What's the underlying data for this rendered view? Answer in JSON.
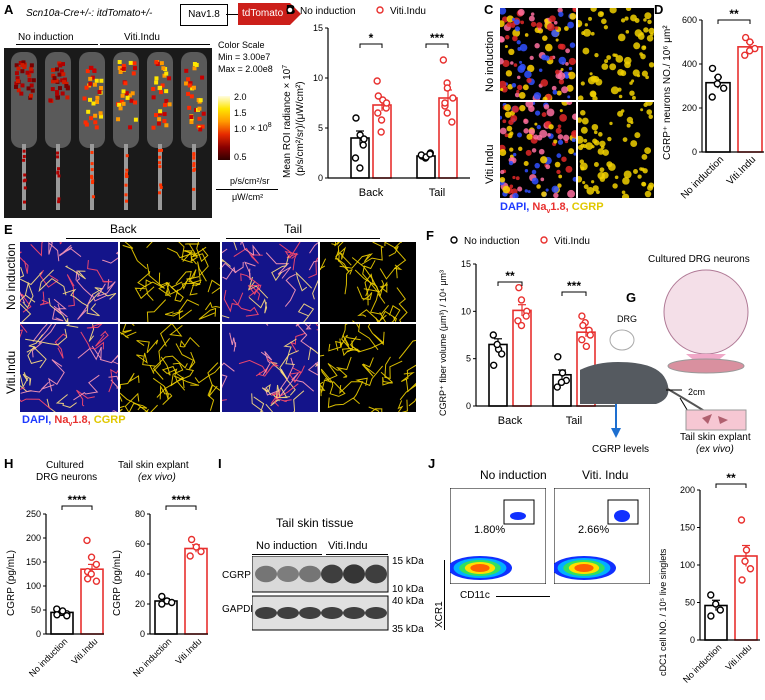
{
  "panels": {
    "A": {
      "letter": "A",
      "genotype": "Scn10a-Cre+/-: itdTomato+/-",
      "gene_box": "Nav1.8",
      "reporter_box": "tdTomato",
      "groups": [
        "No induction",
        "Viti.Indu"
      ],
      "color_scale_title": "Color Scale",
      "color_scale_min": "Min = 3.00e7",
      "color_scale_max": "Max = 2.00e8",
      "colorbar_ticks": [
        "2.0",
        "1.5",
        "1.0",
        "0.5"
      ],
      "colorbar_exp": "× 10",
      "colorbar_exp_sup": "8",
      "unit_top": "p/s/cm²/sr",
      "unit_bottom": "μW/cm²"
    },
    "B": {
      "letter": "B",
      "sig": [
        "*",
        "***"
      ]
    },
    "C": {
      "letter": "C",
      "rows": [
        "No induction",
        "Viti.Indu"
      ],
      "stain_dapi": "DAPI,",
      "stain_nav": "Na",
      "stain_nav_sub": "v",
      "stain_nav_end": "1.8,",
      "stain_cgrp": "CGRP"
    },
    "D": {
      "letter": "D",
      "sig": "**"
    },
    "E": {
      "letter": "E",
      "col_back": "Back",
      "col_tail": "Tail",
      "rows": [
        "No induction",
        "Viti.Indu"
      ],
      "stain_dapi": "DAPI,",
      "stain_nav": "Na",
      "stain_nav_sub": "v",
      "stain_nav_end": "1.8,",
      "stain_cgrp": "CGRP"
    },
    "F": {
      "letter": "F",
      "sig": [
        "**",
        "***"
      ]
    },
    "G": {
      "letter": "G",
      "title": "Cultured DRG neurons",
      "drg": "DRG",
      "distance": "2cm",
      "cgrp_levels": "CGRP levels",
      "explant": "Tail skin explant",
      "explant_sub": "(ex vivo)"
    },
    "H": {
      "letter": "H",
      "left_title_1": "Cultured",
      "left_title_2": "DRG neurons",
      "right_title_1": "Tail skin explant",
      "right_title_2": "(ex vivo)",
      "sig": "****"
    },
    "I": {
      "letter": "I",
      "title": "Tail skin tissue",
      "groups": [
        "No induction",
        "Viti.Indu"
      ],
      "rows": [
        "CGRP",
        "GAPDH"
      ],
      "markers": [
        "15 kDa",
        "10 kDa",
        "40 kDa",
        "35 kDa"
      ]
    },
    "J": {
      "letter": "J",
      "flow_titles": [
        "No induction",
        "Viti. Indu"
      ],
      "gate_pct": [
        "1.80%",
        "2.66%"
      ],
      "y_axis": "XCR1",
      "x_axis": "CD11c",
      "sig": "**"
    }
  },
  "chart_data": [
    {
      "id": "B",
      "type": "bar",
      "categories": [
        "Back",
        "Tail"
      ],
      "series": [
        {
          "name": "No induction",
          "values": [
            4.0,
            2.2
          ],
          "points": [
            [
              6.0,
              4.3,
              3.3,
              2.0,
              1.0,
              3.9
            ],
            [
              2.2,
              2.0,
              2.5,
              2.3,
              2.1,
              2.4
            ]
          ],
          "sem": [
            0.7,
            0.1
          ]
        },
        {
          "name": "Viti.Indu",
          "values": [
            7.3,
            8.0
          ],
          "points": [
            [
              9.7,
              7.8,
              7.0,
              6.5,
              5.8,
              7.5,
              8.2,
              4.6
            ],
            [
              11.8,
              9.5,
              8.0,
              7.2,
              6.5,
              5.6,
              7.5,
              9.0
            ]
          ],
          "sem": [
            0.6,
            0.8
          ]
        }
      ],
      "ylabel": "Mean ROI radiance × 10",
      "ylabel_sup": "7",
      "ylabel_2": "(p/s/cm²/sr)/(μW/cm²)",
      "yticks": [
        "0",
        "5",
        "10",
        "15"
      ],
      "ylim": [
        0,
        15
      ],
      "legend": "top"
    },
    {
      "id": "D",
      "type": "bar",
      "categories": [
        "No induction",
        "Viti.Indu"
      ],
      "values": [
        315,
        478
      ],
      "sem": [
        25,
        20
      ],
      "points": [
        [
          380,
          340,
          290,
          250,
          310
        ],
        [
          520,
          500,
          470,
          440,
          460
        ]
      ],
      "ylabel": "CGRP⁺ neurons NO./ 10⁶ μm²",
      "yticks": [
        "0",
        "200",
        "400",
        "600"
      ],
      "ylim": [
        0,
        600
      ]
    },
    {
      "id": "F",
      "type": "bar",
      "categories": [
        "Back",
        "Tail"
      ],
      "series": [
        {
          "name": "No induction",
          "values": [
            6.5,
            3.3
          ],
          "points": [
            [
              7.5,
              6.0,
              5.5,
              4.3,
              6.5
            ],
            [
              5.2,
              3.5,
              2.7,
              2.0,
              2.5
            ]
          ],
          "sem": [
            0.6,
            0.5
          ]
        },
        {
          "name": "Viti.Indu",
          "values": [
            10.1,
            7.8
          ],
          "points": [
            [
              12.5,
              11.2,
              10.0,
              9.0,
              8.5,
              9.5
            ],
            [
              9.5,
              8.8,
              8.0,
              7.0,
              6.3,
              7.5,
              8.5
            ]
          ],
          "sem": [
            0.6,
            0.5
          ]
        }
      ],
      "ylabel": "CGRP⁺ fiber volume (μm³) / 10⁴ μm³",
      "yticks": [
        "0",
        "5",
        "10",
        "15"
      ],
      "ylim": [
        0,
        15
      ],
      "legend": "top"
    },
    {
      "id": "H1",
      "type": "bar",
      "categories": [
        "No induction",
        "Viti.Indu"
      ],
      "values": [
        45,
        135
      ],
      "sem": [
        4,
        10
      ],
      "points": [
        [
          52,
          45,
          42,
          40,
          48,
          38
        ],
        [
          195,
          160,
          145,
          130,
          125,
          110,
          115
        ]
      ],
      "ylabel": "CGRP (pg/mL)",
      "yticks": [
        "0",
        "50",
        "100",
        "150",
        "200",
        "250"
      ],
      "ylim": [
        0,
        250
      ]
    },
    {
      "id": "H2",
      "type": "bar",
      "categories": [
        "No induction",
        "Viti.Indu"
      ],
      "values": [
        22,
        57
      ],
      "sem": [
        1.5,
        2.5
      ],
      "points": [
        [
          25,
          22,
          21,
          20
        ],
        [
          63,
          58,
          55,
          52
        ]
      ],
      "ylabel": "CGRP (pg/mL)",
      "yticks": [
        "0",
        "20",
        "40",
        "60",
        "80"
      ],
      "ylim": [
        0,
        80
      ]
    },
    {
      "id": "J",
      "type": "bar",
      "categories": [
        "No induction",
        "Viti.Indu"
      ],
      "values": [
        46,
        112
      ],
      "sem": [
        7,
        14
      ],
      "points": [
        [
          60,
          48,
          40,
          32
        ],
        [
          160,
          120,
          95,
          80,
          105
        ]
      ],
      "ylabel": "cDC1 cell NO. / 10⁵ live singlets",
      "yticks": [
        "0",
        "50",
        "100",
        "150",
        "200"
      ],
      "ylim": [
        0,
        200
      ]
    }
  ],
  "colors": {
    "red": "#e8302e",
    "black": "#000000",
    "yellow": "#ffe000",
    "blue": "#1e3aff"
  }
}
